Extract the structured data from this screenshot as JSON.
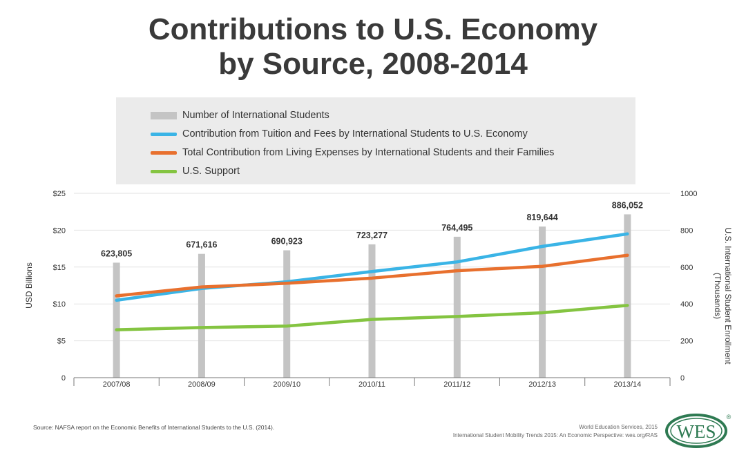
{
  "title_line1": "Contributions to U.S. Economy",
  "title_line2": "by Source, 2008-2014",
  "legend": [
    {
      "label": "Number of International Students",
      "color": "#c4c4c4",
      "kind": "bar"
    },
    {
      "label": "Contribution from Tuition and Fees by International Students to U.S. Economy",
      "color": "#3ab4e6",
      "kind": "line"
    },
    {
      "label": "Total Contribution from Living Expenses by International Students and their Families",
      "color": "#e8702e",
      "kind": "line"
    },
    {
      "label": "U.S. Support",
      "color": "#84c441",
      "kind": "line"
    }
  ],
  "chart_data": {
    "type": "bar+line",
    "categories": [
      "2007/08",
      "2008/09",
      "2009/10",
      "2010/11",
      "2011/12",
      "2012/13",
      "2013/14"
    ],
    "bars": {
      "name": "Number of International Students",
      "values": [
        623805,
        671616,
        690923,
        723277,
        764495,
        819644,
        886052
      ],
      "labels": [
        "623,805",
        "671,616",
        "690,923",
        "723,277",
        "764,495",
        "819,644",
        "886,052"
      ],
      "axis": "right",
      "color": "#c4c4c4"
    },
    "series": [
      {
        "name": "Contribution from Tuition and Fees by International Students to U.S. Economy",
        "values": [
          10.5,
          12.1,
          13.0,
          14.4,
          15.7,
          17.8,
          19.5
        ],
        "color": "#3ab4e6"
      },
      {
        "name": "Total Contribution from Living Expenses by International Students and their Families",
        "values": [
          11.1,
          12.3,
          12.8,
          13.5,
          14.5,
          15.1,
          16.6
        ],
        "color": "#e8702e"
      },
      {
        "name": "U.S. Support",
        "values": [
          6.5,
          6.8,
          7.0,
          7.9,
          8.3,
          8.8,
          9.8
        ],
        "color": "#84c441"
      }
    ],
    "ylabel": "USD Billions",
    "ylim": [
      0,
      25
    ],
    "yticks": [
      0,
      5,
      10,
      15,
      20,
      25
    ],
    "ytick_labels": [
      "0",
      "$5",
      "$10",
      "$15",
      "$20",
      "$25"
    ],
    "y2label_line1": "U.S. International Student Enrollment",
    "y2label_line2": "(Thousands)",
    "y2lim": [
      0,
      1000
    ],
    "y2ticks": [
      0,
      200,
      400,
      600,
      800,
      1000
    ],
    "y2tick_labels": [
      "0",
      "200",
      "400",
      "600",
      "800",
      "1000"
    ],
    "grid": true
  },
  "source_text": "Source: NAFSA report on the Economic Benefits of International Students to the U.S. (2014).",
  "credit_line1": "World Education Services, 2015",
  "credit_line2": "International Student Mobility Trends 2015: An Economic Perspective: wes.org/RAS",
  "logo_text": "WES",
  "logo_mark": "®",
  "colors": {
    "logo": "#2e7a52",
    "title": "#3a3a3a",
    "grid": "#e2e2e2"
  }
}
